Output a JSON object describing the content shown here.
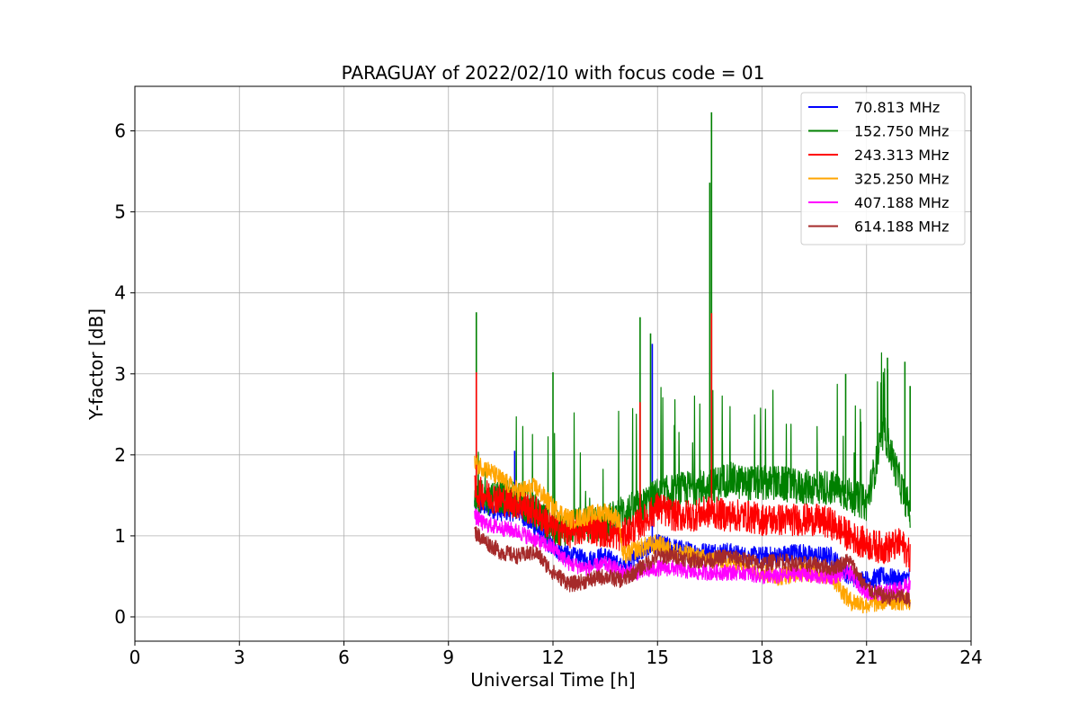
{
  "chart_data": {
    "type": "line",
    "title": "PARAGUAY of 2022/02/10 with focus code = 01",
    "xlabel": "Universal Time [h]",
    "ylabel": "Y-factor [dB]",
    "xlim": [
      0,
      24
    ],
    "ylim": [
      -0.3,
      6.55
    ],
    "xticks": [
      0,
      3,
      6,
      9,
      12,
      15,
      18,
      21,
      24
    ],
    "yticks": [
      0,
      1,
      2,
      3,
      4,
      5,
      6
    ],
    "grid": true,
    "legend_position": "top-right",
    "x_range_data": [
      9.75,
      22.25
    ],
    "series": [
      {
        "name": " 70.813 MHz",
        "color": "#0000ff",
        "x": [
          9.75,
          10.5,
          11.0,
          11.5,
          12.0,
          12.5,
          13.0,
          13.5,
          14.0,
          14.5,
          15.0,
          15.5,
          16.0,
          16.5,
          17.0,
          17.5,
          18.0,
          18.5,
          19.0,
          19.5,
          20.0,
          20.5,
          21.0,
          21.5,
          22.0,
          22.25
        ],
        "y": [
          1.4,
          1.3,
          1.3,
          1.1,
          0.85,
          0.75,
          0.7,
          0.75,
          0.6,
          0.8,
          0.9,
          0.85,
          0.8,
          0.8,
          0.8,
          0.75,
          0.75,
          0.75,
          0.8,
          0.75,
          0.75,
          0.5,
          0.45,
          0.5,
          0.45,
          0.5
        ],
        "spikes": [
          [
            10.9,
            2.05
          ],
          [
            14.85,
            3.37
          ]
        ]
      },
      {
        "name": "152.750 MHz",
        "color": "#008000",
        "x": [
          9.75,
          10.5,
          11.0,
          11.5,
          12.0,
          12.5,
          13.0,
          13.5,
          14.0,
          14.5,
          15.0,
          15.5,
          16.0,
          16.5,
          17.0,
          17.5,
          18.0,
          18.5,
          19.0,
          19.5,
          20.0,
          20.5,
          21.0,
          21.5,
          22.0,
          22.25
        ],
        "y": [
          1.45,
          1.5,
          1.45,
          1.3,
          1.1,
          1.1,
          1.15,
          1.15,
          1.3,
          1.35,
          1.5,
          1.55,
          1.6,
          1.6,
          1.7,
          1.65,
          1.65,
          1.65,
          1.6,
          1.6,
          1.6,
          1.5,
          1.4,
          2.3,
          1.6,
          1.3
        ],
        "spikes": [
          [
            9.8,
            3.76
          ],
          [
            12.0,
            3.02
          ],
          [
            14.5,
            3.7
          ],
          [
            14.8,
            3.5
          ],
          [
            16.55,
            6.23
          ],
          [
            16.5,
            5.36
          ],
          [
            20.4,
            3.0
          ],
          [
            21.6,
            3.2
          ],
          [
            22.1,
            3.15
          ],
          [
            22.25,
            2.85
          ]
        ]
      },
      {
        "name": "243.313 MHz",
        "color": "#ff0000",
        "x": [
          9.75,
          10.5,
          11.0,
          11.5,
          12.0,
          12.5,
          13.0,
          13.5,
          14.0,
          14.5,
          15.0,
          15.5,
          16.0,
          16.5,
          17.0,
          17.5,
          18.0,
          18.5,
          19.0,
          19.5,
          20.0,
          20.5,
          21.0,
          21.5,
          22.0,
          22.25
        ],
        "y": [
          1.55,
          1.45,
          1.4,
          1.3,
          1.1,
          1.05,
          1.1,
          1.05,
          1.0,
          1.15,
          1.35,
          1.25,
          1.25,
          1.3,
          1.25,
          1.25,
          1.2,
          1.2,
          1.2,
          1.2,
          1.15,
          1.0,
          0.9,
          0.85,
          0.9,
          0.75
        ],
        "spikes": [
          [
            9.8,
            3.02
          ],
          [
            14.5,
            2.65
          ],
          [
            16.55,
            3.75
          ]
        ]
      },
      {
        "name": "325.250 MHz",
        "color": "#ffa500",
        "x": [
          9.75,
          10.0,
          10.5,
          11.0,
          11.5,
          12.0,
          12.5,
          13.0,
          13.5,
          13.9,
          14.0,
          14.5,
          15.0,
          15.5,
          16.0,
          16.5,
          17.0,
          17.5,
          18.0,
          18.5,
          19.0,
          19.5,
          20.0,
          20.5,
          21.0,
          21.5,
          22.0,
          22.25
        ],
        "y": [
          1.9,
          1.85,
          1.7,
          1.55,
          1.6,
          1.35,
          1.2,
          1.25,
          1.3,
          1.2,
          0.75,
          0.85,
          0.9,
          0.8,
          0.75,
          0.7,
          0.7,
          0.65,
          0.55,
          0.5,
          0.55,
          0.55,
          0.5,
          0.2,
          0.15,
          0.2,
          0.2,
          0.2
        ],
        "spikes": []
      },
      {
        "name": "407.188 MHz",
        "color": "#ff00ff",
        "x": [
          9.75,
          10.0,
          10.5,
          11.0,
          11.5,
          12.0,
          12.5,
          13.0,
          13.5,
          14.0,
          14.5,
          15.0,
          15.5,
          16.0,
          16.5,
          17.0,
          17.5,
          18.0,
          18.5,
          19.0,
          19.5,
          20.0,
          20.5,
          21.0,
          21.5,
          22.0,
          22.25
        ],
        "y": [
          1.25,
          1.15,
          1.1,
          1.05,
          0.95,
          0.85,
          0.65,
          0.6,
          0.65,
          0.55,
          0.55,
          0.6,
          0.6,
          0.55,
          0.55,
          0.55,
          0.55,
          0.5,
          0.5,
          0.55,
          0.5,
          0.5,
          0.55,
          0.3,
          0.3,
          0.35,
          0.4
        ],
        "spikes": []
      },
      {
        "name": "614.188 MHz",
        "color": "#a52a2a",
        "x": [
          9.75,
          10.0,
          10.5,
          11.0,
          11.5,
          12.0,
          12.5,
          13.0,
          13.5,
          14.0,
          14.5,
          15.0,
          15.5,
          16.0,
          16.5,
          17.0,
          17.5,
          18.0,
          18.5,
          19.0,
          19.5,
          20.0,
          20.5,
          21.0,
          21.5,
          22.0,
          22.25
        ],
        "y": [
          1.05,
          0.95,
          0.8,
          0.75,
          0.8,
          0.55,
          0.4,
          0.45,
          0.5,
          0.45,
          0.6,
          0.75,
          0.75,
          0.7,
          0.7,
          0.75,
          0.7,
          0.65,
          0.7,
          0.65,
          0.65,
          0.6,
          0.7,
          0.35,
          0.25,
          0.25,
          0.2
        ],
        "spikes": []
      }
    ]
  }
}
